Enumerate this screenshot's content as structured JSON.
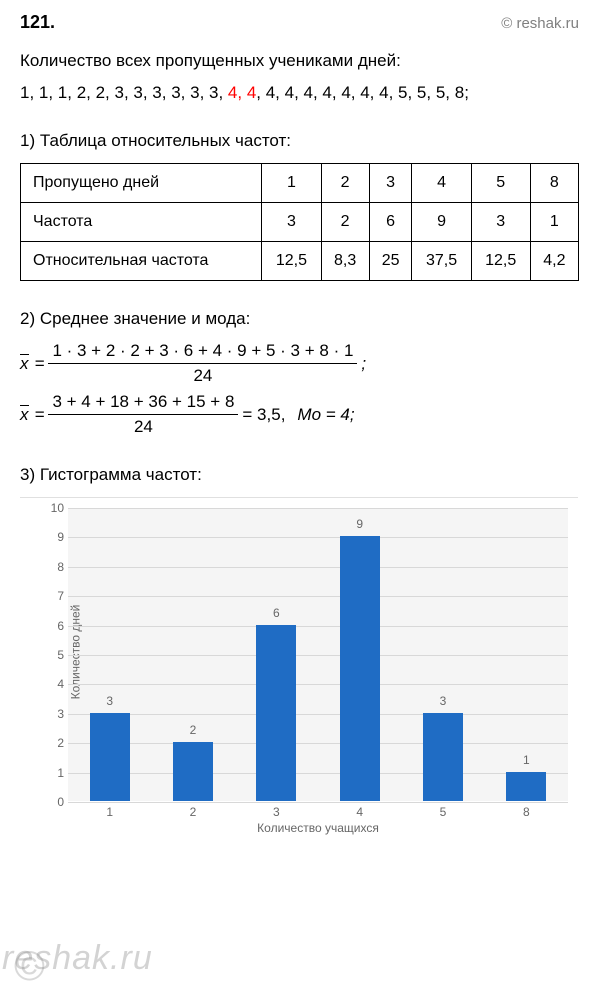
{
  "header": {
    "problem_number": "121.",
    "copyright": "© reshak.ru"
  },
  "description": "Количество всех пропущенных учениками дней:",
  "sequence": {
    "part1": "1, 1, 1, 2, 2, 3, 3, 3, 3, 3, 3, ",
    "highlighted": "4, 4",
    "part2": ", 4, 4, 4, 4, 4, 4, 4, 5, 5, 5, 8;"
  },
  "section1": {
    "title": "1) Таблица относительных частот:",
    "table": {
      "row1_label": "Пропущено дней",
      "row1_values": [
        "1",
        "2",
        "3",
        "4",
        "5",
        "8"
      ],
      "row2_label": "Частота",
      "row2_values": [
        "3",
        "2",
        "6",
        "9",
        "3",
        "1"
      ],
      "row3_label": "Относительная частота",
      "row3_values": [
        "12,5",
        "8,3",
        "25",
        "37,5",
        "12,5",
        "4,2"
      ]
    }
  },
  "section2": {
    "title": "2) Среднее значение и мода:",
    "formula1": {
      "var": "x",
      "eq": " = ",
      "num": "1 · 3 + 2 · 2 + 3 · 6 + 4 · 9 + 5 · 3 + 8 · 1",
      "den": "24",
      "suffix": " ;"
    },
    "formula2": {
      "var": "x",
      "eq": " = ",
      "num": "3 + 4 + 18 + 36 + 15 + 8",
      "den": "24",
      "result": " = 3,5,",
      "mo": "Mo = 4;"
    }
  },
  "section3": {
    "title": "3) Гистограмма частот:",
    "chart": {
      "type": "bar",
      "categories": [
        "1",
        "2",
        "3",
        "4",
        "5",
        "8"
      ],
      "values": [
        3,
        2,
        6,
        9,
        3,
        1
      ],
      "bar_color": "#1f6cc4",
      "background_color": "#f5f5f5",
      "grid_color": "#d8d8d8",
      "y_label": "Количество дней",
      "x_label": "Количество учащихся",
      "ylim": [
        0,
        10
      ],
      "ytick_step": 1,
      "bar_width_ratio": 0.48,
      "tick_font_size": 12,
      "tick_color": "#666666"
    }
  },
  "watermark": {
    "text": "reshak.ru",
    "symbol": "©"
  }
}
